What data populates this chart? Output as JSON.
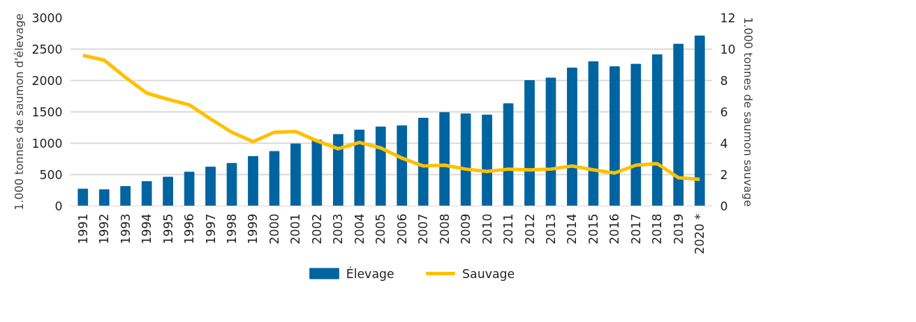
{
  "chart_data": {
    "type": "bar",
    "ylabel": "1.000 tonnes de saumon d'élevage",
    "y2label": "1.000 tonnes de saumon sauvage",
    "categories": [
      "1991",
      "1992",
      "1993",
      "1994",
      "1995",
      "1996",
      "1997",
      "1998",
      "1999",
      "2000",
      "2001",
      "2002",
      "2003",
      "2004",
      "2005",
      "2006",
      "2007",
      "2008",
      "2009",
      "2010",
      "2011",
      "2012",
      "2013",
      "2014",
      "2015",
      "2016",
      "2017",
      "2018",
      "2019",
      "2020 *"
    ],
    "series": [
      {
        "name": "Élevage",
        "color": "#0064a0",
        "values": [
          270,
          260,
          310,
          390,
          460,
          540,
          620,
          680,
          790,
          870,
          990,
          1050,
          1140,
          1210,
          1260,
          1280,
          1400,
          1490,
          1470,
          1450,
          1630,
          2000,
          2040,
          2200,
          2300,
          2220,
          2260,
          2410,
          2580,
          2710
        ]
      },
      {
        "name": "Sauvage",
        "type": "line",
        "axis": "y2",
        "color": "#ffc000",
        "values": [
          9.6,
          9.3,
          8.2,
          7.2,
          6.8,
          6.45,
          5.55,
          4.7,
          4.1,
          4.7,
          4.75,
          4.15,
          3.65,
          4.05,
          3.7,
          3.05,
          2.55,
          2.6,
          2.35,
          2.2,
          2.35,
          2.3,
          2.35,
          2.55,
          2.3,
          2.1,
          2.6,
          2.7,
          1.8,
          1.7
        ]
      }
    ],
    "ylim": [
      0,
      3000
    ],
    "yticks": [
      0,
      500,
      1000,
      1500,
      2000,
      2500,
      3000
    ],
    "y2lim": [
      0,
      12
    ],
    "y2ticks": [
      0,
      2,
      4,
      6,
      8,
      10,
      12
    ],
    "grid": "y",
    "legend": "bottom"
  }
}
